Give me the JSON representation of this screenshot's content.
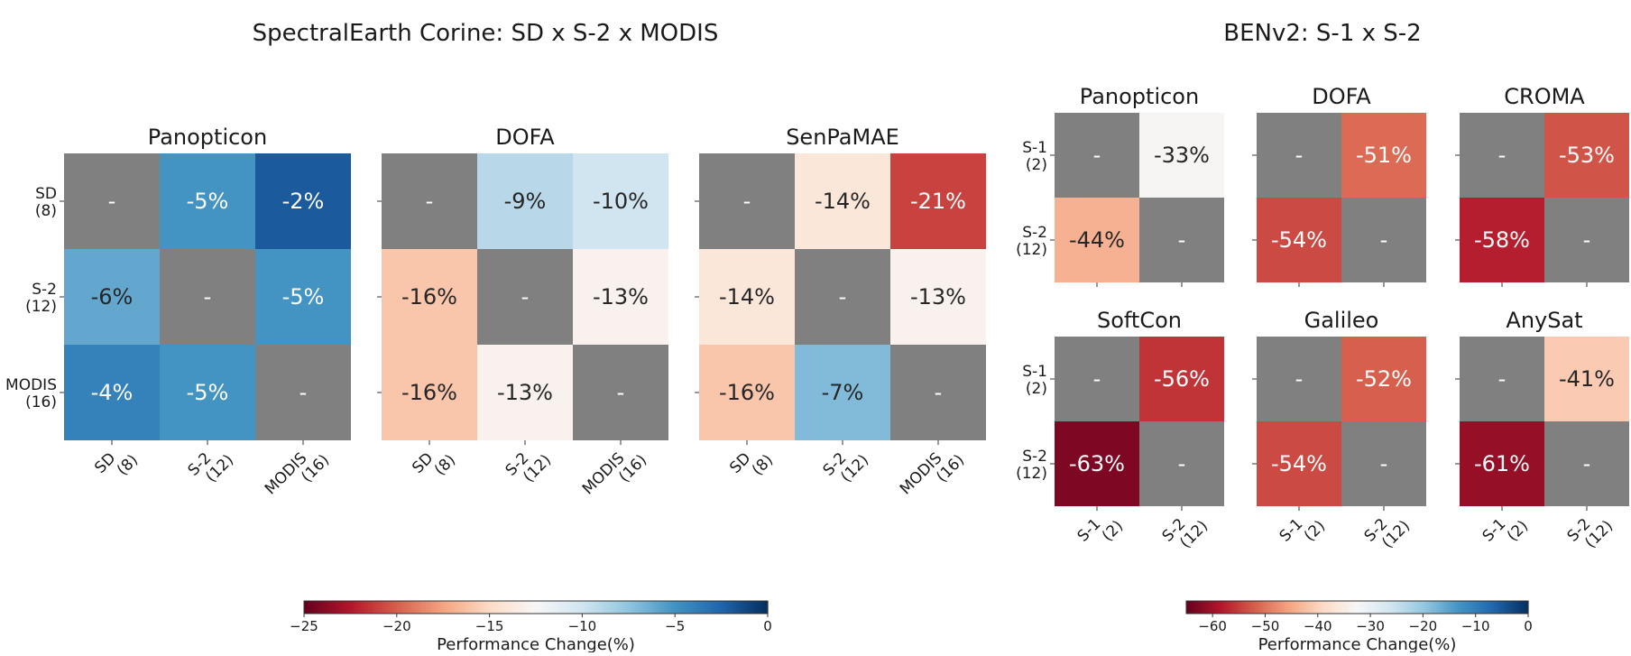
{
  "chart_data": {
    "type": "heatmap",
    "groups": [
      {
        "id": "corine",
        "title": "SpectralEarth Corine: SD x S-2 x MODIS",
        "modalities": [
          "SD\n(8)",
          "S-2\n(12)",
          "MODIS\n(16)"
        ],
        "colorbar": {
          "label": "Performance Change(%)",
          "vmin": -25,
          "vmax": 0,
          "ticks": [
            -25,
            -20,
            -15,
            -10,
            -5,
            0
          ]
        },
        "panels": [
          {
            "title": "Panopticon",
            "values": [
              [
                null,
                -5,
                -2
              ],
              [
                -6,
                null,
                -5
              ],
              [
                -4,
                -5,
                null
              ]
            ],
            "labels": [
              [
                "-",
                "-5%",
                "-2%"
              ],
              [
                "-6%",
                "-",
                "-5%"
              ],
              [
                "-4%",
                "-5%",
                "-"
              ]
            ]
          },
          {
            "title": "DOFA",
            "values": [
              [
                null,
                -9,
                -10
              ],
              [
                -16,
                null,
                -13
              ],
              [
                -16,
                -13,
                null
              ]
            ],
            "labels": [
              [
                "-",
                "-9%",
                "-10%"
              ],
              [
                "-16%",
                "-",
                "-13%"
              ],
              [
                "-16%",
                "-13%",
                "-"
              ]
            ]
          },
          {
            "title": "SenPaMAE",
            "values": [
              [
                null,
                -14,
                -21
              ],
              [
                -14,
                null,
                -13
              ],
              [
                -16,
                -7,
                null
              ]
            ],
            "labels": [
              [
                "-",
                "-14%",
                "-21%"
              ],
              [
                "-14%",
                "-",
                "-13%"
              ],
              [
                "-16%",
                "-7%",
                "-"
              ]
            ]
          }
        ]
      },
      {
        "id": "benv2",
        "title": "BENv2: S-1 x S-2",
        "modalities": [
          "S-1\n(2)",
          "S-2\n(12)"
        ],
        "colorbar": {
          "label": "Performance Change(%)",
          "vmin": -65,
          "vmax": 0,
          "ticks": [
            -60,
            -50,
            -40,
            -30,
            -20,
            -10,
            0
          ]
        },
        "panels": [
          {
            "title": "Panopticon",
            "values": [
              [
                null,
                -33
              ],
              [
                -44,
                null
              ]
            ],
            "labels": [
              [
                "-",
                "-33%"
              ],
              [
                "-44%",
                "-"
              ]
            ]
          },
          {
            "title": "DOFA",
            "values": [
              [
                null,
                -51
              ],
              [
                -54,
                null
              ]
            ],
            "labels": [
              [
                "-",
                "-51%"
              ],
              [
                "-54%",
                "-"
              ]
            ]
          },
          {
            "title": "CROMA",
            "values": [
              [
                null,
                -53
              ],
              [
                -58,
                null
              ]
            ],
            "labels": [
              [
                "-",
                "-53%"
              ],
              [
                "-58%",
                "-"
              ]
            ]
          },
          {
            "title": "SoftCon",
            "values": [
              [
                null,
                -56
              ],
              [
                -63,
                null
              ]
            ],
            "labels": [
              [
                "-",
                "-56%"
              ],
              [
                "-63%",
                "-"
              ]
            ]
          },
          {
            "title": "Galileo",
            "values": [
              [
                null,
                -52
              ],
              [
                -54,
                null
              ]
            ],
            "labels": [
              [
                "-",
                "-52%"
              ],
              [
                "-54%",
                "-"
              ]
            ]
          },
          {
            "title": "AnySat",
            "values": [
              [
                null,
                -41
              ],
              [
                -61,
                null
              ]
            ],
            "labels": [
              [
                "-",
                "-41%"
              ],
              [
                "-61%",
                "-"
              ]
            ]
          }
        ]
      }
    ],
    "diagonal_color": "#808080",
    "colormap": "RdBu"
  }
}
